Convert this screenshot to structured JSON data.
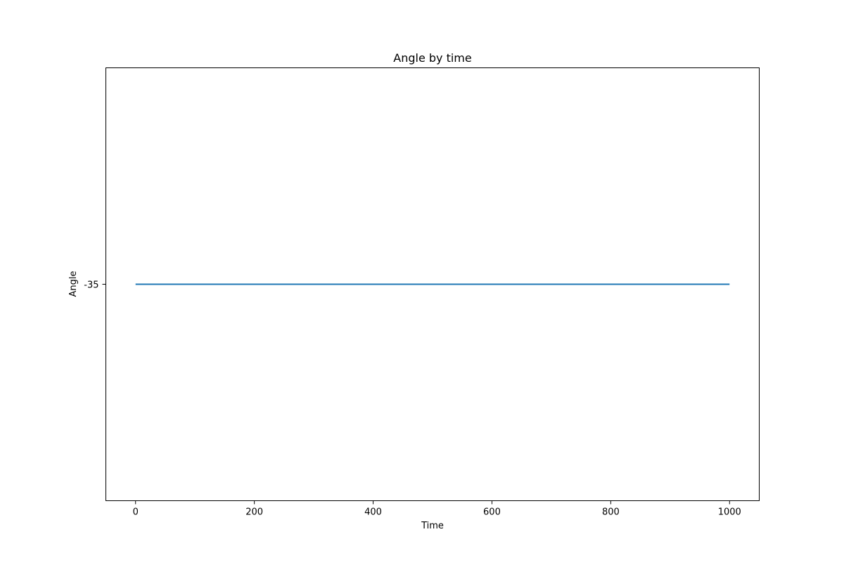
{
  "chart_data": {
    "type": "line",
    "title": "Angle by time",
    "xlabel": "Time",
    "ylabel": "Angle",
    "xlim": [
      -50,
      1050
    ],
    "ylim": [
      -35.055,
      -34.945
    ],
    "x_ticks": [
      0,
      200,
      400,
      600,
      800,
      1000
    ],
    "y_ticks": [
      -35
    ],
    "y_tick_labels": [
      "-35"
    ],
    "grid": false,
    "series": [
      {
        "x": [
          0,
          1000
        ],
        "y": [
          -35,
          -35
        ],
        "color": "#1f77b4"
      }
    ]
  }
}
